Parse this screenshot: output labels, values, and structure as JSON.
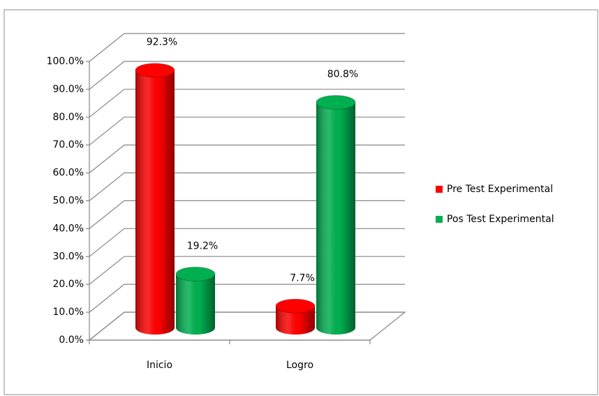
{
  "chart_data": {
    "type": "bar3d",
    "categories": [
      "Inicio",
      "Logro"
    ],
    "series": [
      {
        "name": "Pre Test Experimental",
        "color": "#ff0000",
        "values": [
          92.3,
          7.7
        ],
        "value_labels": [
          "92.3%",
          "7.7%"
        ]
      },
      {
        "name": "Pos Test Experimental",
        "color": "#00b050",
        "values": [
          19.2,
          80.8
        ],
        "value_labels": [
          "19.2%",
          "80.8%"
        ]
      }
    ],
    "ylim": [
      0,
      100
    ],
    "yticks": [
      {
        "value": 0,
        "label": "0.0%"
      },
      {
        "value": 10,
        "label": "10.0%"
      },
      {
        "value": 20,
        "label": "20.0%"
      },
      {
        "value": 30,
        "label": "30.0%"
      },
      {
        "value": 40,
        "label": "40.0%"
      },
      {
        "value": 50,
        "label": "50.0%"
      },
      {
        "value": 60,
        "label": "60.0%"
      },
      {
        "value": 70,
        "label": "70.0%"
      },
      {
        "value": 80,
        "label": "80.0%"
      },
      {
        "value": 90,
        "label": "90.0%"
      },
      {
        "value": 100,
        "label": "100.0%"
      }
    ],
    "grid": true,
    "legend": "right"
  }
}
